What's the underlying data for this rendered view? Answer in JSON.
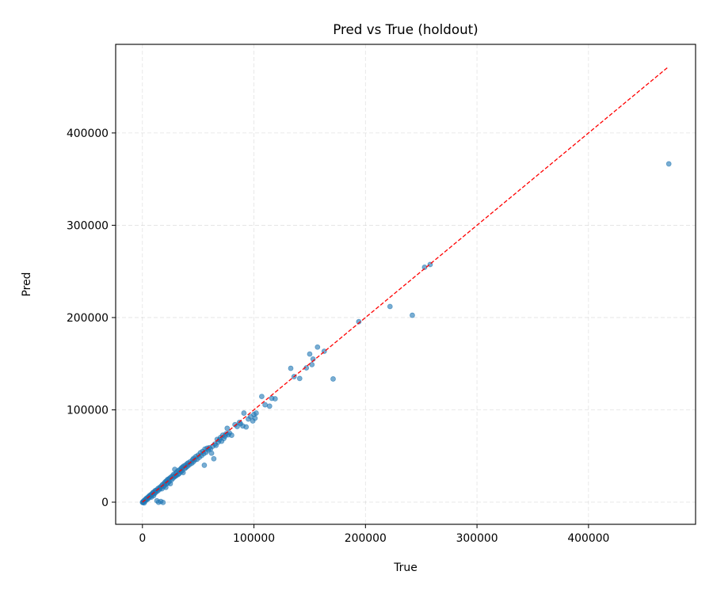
{
  "chart_data": {
    "type": "scatter",
    "title": "Pred vs True (holdout)",
    "xlabel": "True",
    "ylabel": "Pred",
    "xlim": [
      -24000,
      496000
    ],
    "ylim": [
      -24000,
      496000
    ],
    "xticks": [
      0,
      100000,
      200000,
      300000,
      400000
    ],
    "yticks": [
      0,
      100000,
      200000,
      300000,
      400000
    ],
    "xtick_labels": [
      "0",
      "100000",
      "200000",
      "300000",
      "400000"
    ],
    "ytick_labels": [
      "0",
      "100000",
      "200000",
      "300000",
      "400000"
    ],
    "grid": true,
    "reference_line": {
      "name": "y = x",
      "from": [
        0,
        0
      ],
      "to": [
        472000,
        472000
      ],
      "color": "#ff0000",
      "style": "dashed"
    },
    "series": [
      {
        "color": "#1f77b4",
        "points": [
          [
            0,
            0
          ],
          [
            300,
            -500
          ],
          [
            800,
            400
          ],
          [
            1200,
            1500
          ],
          [
            1500,
            -800
          ],
          [
            2000,
            2200
          ],
          [
            2500,
            1000
          ],
          [
            3000,
            3500
          ],
          [
            3500,
            2800
          ],
          [
            4000,
            4500
          ],
          [
            4500,
            3000
          ],
          [
            5000,
            5200
          ],
          [
            5500,
            6000
          ],
          [
            6000,
            4800
          ],
          [
            6500,
            7200
          ],
          [
            7000,
            6500
          ],
          [
            7500,
            8000
          ],
          [
            8000,
            5500
          ],
          [
            8500,
            9000
          ],
          [
            9000,
            8200
          ],
          [
            9500,
            10500
          ],
          [
            10000,
            7000
          ],
          [
            10500,
            11000
          ],
          [
            11000,
            9500
          ],
          [
            11500,
            12500
          ],
          [
            12000,
            10800
          ],
          [
            12500,
            13000
          ],
          [
            13000,
            1500
          ],
          [
            13500,
            12000
          ],
          [
            14000,
            14800
          ],
          [
            14500,
            -200
          ],
          [
            15000,
            13500
          ],
          [
            15500,
            16000
          ],
          [
            16000,
            15000
          ],
          [
            16500,
            800
          ],
          [
            17000,
            17500
          ],
          [
            17500,
            14500
          ],
          [
            18000,
            19000
          ],
          [
            18500,
            -300
          ],
          [
            19000,
            17000
          ],
          [
            19500,
            20500
          ],
          [
            20000,
            18500
          ],
          [
            20500,
            22000
          ],
          [
            21000,
            16000
          ],
          [
            21500,
            23000
          ],
          [
            22000,
            20000
          ],
          [
            22500,
            24500
          ],
          [
            23000,
            21000
          ],
          [
            23500,
            25000
          ],
          [
            24000,
            22500
          ],
          [
            24500,
            26000
          ],
          [
            25000,
            20000
          ],
          [
            25500,
            27000
          ],
          [
            26000,
            24000
          ],
          [
            27000,
            28500
          ],
          [
            27500,
            26000
          ],
          [
            28000,
            30000
          ],
          [
            28500,
            27500
          ],
          [
            29000,
            35500
          ],
          [
            29500,
            28000
          ],
          [
            30000,
            31500
          ],
          [
            30500,
            29000
          ],
          [
            31000,
            33000
          ],
          [
            32000,
            30000
          ],
          [
            32500,
            34500
          ],
          [
            33000,
            31000
          ],
          [
            34000,
            35500
          ],
          [
            34500,
            33000
          ],
          [
            35000,
            37000
          ],
          [
            35500,
            34000
          ],
          [
            36000,
            38000
          ],
          [
            36500,
            32000
          ],
          [
            37000,
            39000
          ],
          [
            38000,
            36500
          ],
          [
            38500,
            40000
          ],
          [
            39000,
            37500
          ],
          [
            40000,
            41500
          ],
          [
            40500,
            39000
          ],
          [
            41000,
            42500
          ],
          [
            42000,
            40500
          ],
          [
            43000,
            44000
          ],
          [
            44000,
            42000
          ],
          [
            45000,
            46000
          ],
          [
            45500,
            43500
          ],
          [
            46000,
            47500
          ],
          [
            47000,
            45500
          ],
          [
            48000,
            49500
          ],
          [
            49000,
            46500
          ],
          [
            50000,
            51000
          ],
          [
            51000,
            48500
          ],
          [
            52000,
            53500
          ],
          [
            53000,
            50500
          ],
          [
            54000,
            55000
          ],
          [
            55000,
            52500
          ],
          [
            55500,
            40000
          ],
          [
            56000,
            57500
          ],
          [
            57000,
            54000
          ],
          [
            58000,
            58500
          ],
          [
            59000,
            56500
          ],
          [
            60000,
            59000
          ],
          [
            61000,
            57500
          ],
          [
            62000,
            53000
          ],
          [
            63000,
            60500
          ],
          [
            64000,
            47000
          ],
          [
            65000,
            63000
          ],
          [
            66000,
            61500
          ],
          [
            67000,
            68000
          ],
          [
            68000,
            65000
          ],
          [
            69000,
            67500
          ],
          [
            70000,
            70000
          ],
          [
            71000,
            66000
          ],
          [
            72000,
            72500
          ],
          [
            73000,
            69000
          ],
          [
            74000,
            71500
          ],
          [
            75000,
            74000
          ],
          [
            76000,
            80000
          ],
          [
            77000,
            73000
          ],
          [
            78000,
            75000
          ],
          [
            80000,
            72500
          ],
          [
            83000,
            84000
          ],
          [
            85000,
            82000
          ],
          [
            87000,
            86500
          ],
          [
            88000,
            85000
          ],
          [
            90000,
            82500
          ],
          [
            91000,
            96500
          ],
          [
            93000,
            81500
          ],
          [
            95000,
            90000
          ],
          [
            97000,
            92500
          ],
          [
            99000,
            88000
          ],
          [
            100000,
            95000
          ],
          [
            101000,
            91000
          ],
          [
            102000,
            96500
          ],
          [
            107000,
            114500
          ],
          [
            110000,
            105500
          ],
          [
            114000,
            104000
          ],
          [
            116000,
            112500
          ],
          [
            119000,
            112000
          ],
          [
            133000,
            145000
          ],
          [
            136000,
            136000
          ],
          [
            141000,
            134000
          ],
          [
            147000,
            145500
          ],
          [
            150000,
            160500
          ],
          [
            152000,
            149000
          ],
          [
            153000,
            155000
          ],
          [
            157000,
            168000
          ],
          [
            163000,
            163500
          ],
          [
            171000,
            133500
          ],
          [
            194000,
            195500
          ],
          [
            222000,
            212000
          ],
          [
            242000,
            202500
          ],
          [
            253000,
            254500
          ],
          [
            258000,
            257500
          ],
          [
            472000,
            366500
          ]
        ]
      }
    ]
  }
}
